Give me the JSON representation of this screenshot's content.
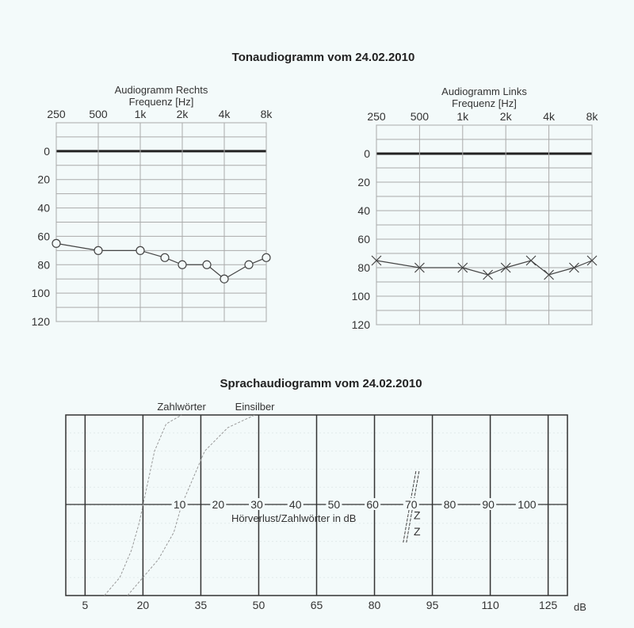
{
  "tone_title": "Tonaudiogramm vom 24.02.2010",
  "speech_title": "Sprachaudiogramm vom 24.02.2010",
  "chart_data": [
    {
      "type": "line",
      "title": "Audiogramm Rechts",
      "xlabel": "Frequenz [Hz]",
      "x_tick_labels": [
        "250",
        "500",
        "1k",
        "2k",
        "4k",
        "8k"
      ],
      "x_ticks": [
        250,
        500,
        1000,
        2000,
        4000,
        8000
      ],
      "x_scale": "log2",
      "y_tick_labels": [
        "0",
        "20",
        "40",
        "60",
        "80",
        "100",
        "120"
      ],
      "ylim": [
        -20,
        120
      ],
      "y_inverted": true,
      "grid": true,
      "marker": "circle",
      "color": "#444444",
      "x": [
        250,
        500,
        1000,
        1500,
        2000,
        3000,
        4000,
        6000,
        8000
      ],
      "y": [
        65,
        70,
        70,
        75,
        80,
        80,
        90,
        80,
        75
      ]
    },
    {
      "type": "line",
      "title": "Audiogramm Links",
      "xlabel": "Frequenz [Hz]",
      "x_tick_labels": [
        "250",
        "500",
        "1k",
        "2k",
        "4k",
        "8k"
      ],
      "x_ticks": [
        250,
        500,
        1000,
        2000,
        4000,
        8000
      ],
      "x_scale": "log2",
      "y_tick_labels": [
        "0",
        "20",
        "40",
        "60",
        "80",
        "100",
        "120"
      ],
      "ylim": [
        -20,
        120
      ],
      "y_inverted": true,
      "grid": true,
      "marker": "x",
      "color": "#444444",
      "x": [
        250,
        500,
        1000,
        1500,
        2000,
        3000,
        4000,
        6000,
        8000
      ],
      "y": [
        75,
        80,
        80,
        85,
        80,
        75,
        85,
        80,
        75
      ]
    },
    {
      "type": "line",
      "xlabel": "dB",
      "x_tick_labels": [
        "5",
        "20",
        "35",
        "50",
        "65",
        "80",
        "95",
        "110",
        "125"
      ],
      "x_ticks": [
        5,
        20,
        35,
        50,
        65,
        80,
        95,
        110,
        125
      ],
      "xlim": [
        0,
        130
      ],
      "ylim": [
        0,
        100
      ],
      "inner_axis_label": "Hörverlust/Zahlwörter in dB",
      "inner_axis_ticks": [
        "10",
        "20",
        "30",
        "40",
        "50",
        "60",
        "70",
        "80",
        "90",
        "100"
      ],
      "series": [
        {
          "name": "Zahlwörter",
          "style": "dotted",
          "color": "#999999",
          "x": [
            10,
            14,
            17,
            19,
            20,
            21,
            23,
            26,
            30
          ],
          "y": [
            0,
            10,
            25,
            40,
            50,
            60,
            80,
            95,
            100
          ]
        },
        {
          "name": "Einsilber",
          "style": "dotted",
          "color": "#999999",
          "x": [
            16,
            20,
            24,
            28,
            30,
            33,
            36,
            42,
            49
          ],
          "y": [
            0,
            10,
            20,
            35,
            50,
            65,
            80,
            93,
            100
          ]
        }
      ],
      "measurements": {
        "hearing_loss_zahlwoerter": 70,
        "z_points": [
          {
            "x": 90,
            "y": 45,
            "label": "Z"
          },
          {
            "x": 90,
            "y": 36,
            "label": "Z"
          }
        ]
      }
    }
  ]
}
